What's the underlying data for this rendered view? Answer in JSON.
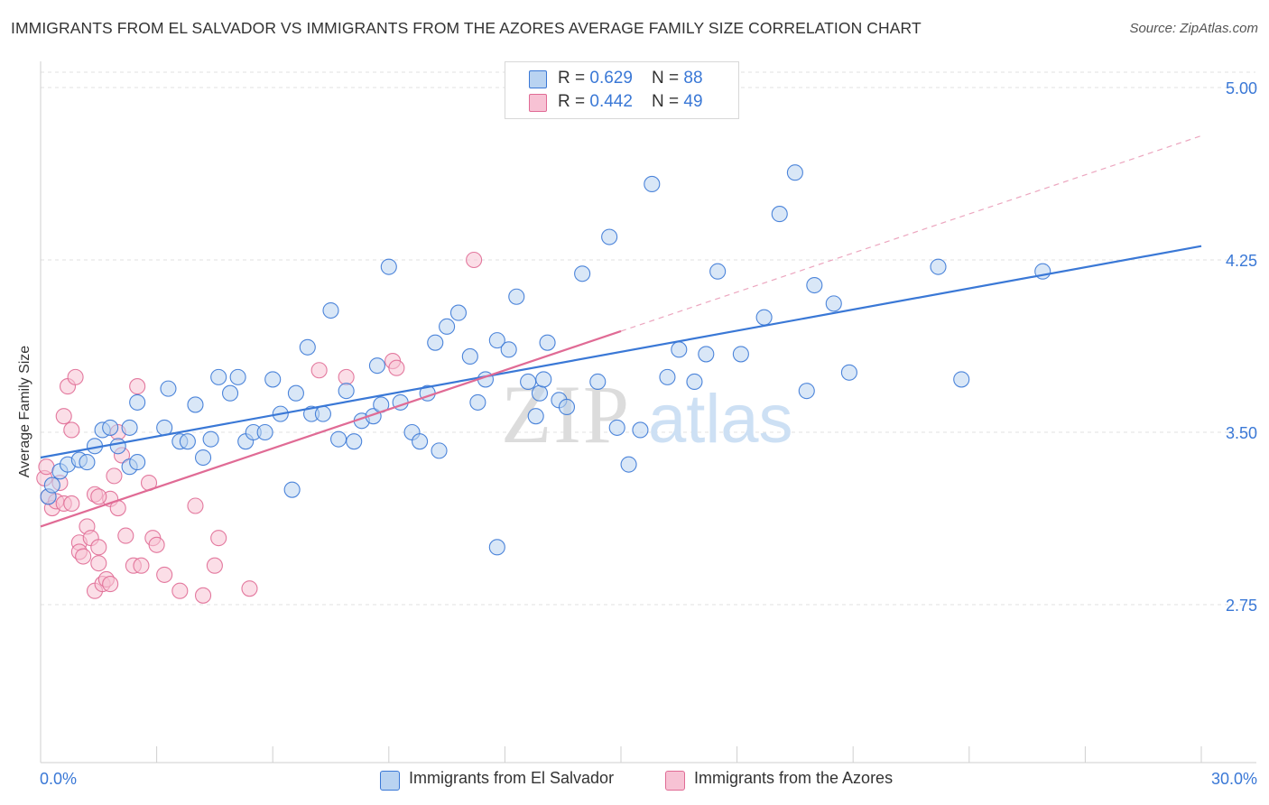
{
  "header": {
    "title": "IMMIGRANTS FROM EL SALVADOR VS IMMIGRANTS FROM THE AZORES AVERAGE FAMILY SIZE CORRELATION CHART",
    "source": "Source: ZipAtlas.com"
  },
  "watermark": {
    "zip": "ZIP",
    "atlas": "atlas"
  },
  "stats_legend": {
    "row1": {
      "r_label": "R = ",
      "r_value": "0.629",
      "n_label": "N = ",
      "n_value": "88"
    },
    "row2": {
      "r_label": "R = ",
      "r_value": "0.442",
      "n_label": "N = ",
      "n_value": "49"
    }
  },
  "colors": {
    "blue": "#3a78d6",
    "blue_fill": "#b9d3f1",
    "pink": "#e06b95",
    "pink_fill": "#f7c2d4",
    "axis_blue": "#3a78d6"
  },
  "chart_data": {
    "type": "scatter",
    "xlabel": "",
    "ylabel": "Average Family Size",
    "xlim": [
      0,
      30
    ],
    "ylim": [
      2.0,
      5.1
    ],
    "x_tick_labels": [
      "0.0%",
      "30.0%"
    ],
    "y_ticks": [
      2.75,
      3.5,
      4.25,
      5.0
    ],
    "y_tick_labels": [
      "2.75",
      "3.50",
      "4.25",
      "5.00"
    ],
    "grid": true,
    "legend_position": "bottom",
    "series": [
      {
        "name": "Immigrants from El Salvador",
        "color": "#3a78d6",
        "trend": {
          "x": [
            0,
            30
          ],
          "y": [
            3.39,
            4.31
          ]
        },
        "points": [
          [
            0.2,
            3.22
          ],
          [
            0.3,
            3.27
          ],
          [
            0.5,
            3.33
          ],
          [
            0.7,
            3.36
          ],
          [
            1.0,
            3.38
          ],
          [
            1.2,
            3.37
          ],
          [
            1.4,
            3.44
          ],
          [
            1.6,
            3.51
          ],
          [
            1.8,
            3.52
          ],
          [
            2.0,
            3.44
          ],
          [
            2.3,
            3.35
          ],
          [
            2.5,
            3.37
          ],
          [
            2.3,
            3.52
          ],
          [
            2.5,
            3.63
          ],
          [
            3.2,
            3.52
          ],
          [
            3.3,
            3.69
          ],
          [
            3.6,
            3.46
          ],
          [
            3.8,
            3.46
          ],
          [
            4.0,
            3.62
          ],
          [
            4.2,
            3.39
          ],
          [
            4.4,
            3.47
          ],
          [
            4.6,
            3.74
          ],
          [
            4.9,
            3.67
          ],
          [
            5.1,
            3.74
          ],
          [
            5.3,
            3.46
          ],
          [
            5.5,
            3.5
          ],
          [
            5.8,
            3.5
          ],
          [
            6.0,
            3.73
          ],
          [
            6.2,
            3.58
          ],
          [
            6.5,
            3.25
          ],
          [
            6.6,
            3.67
          ],
          [
            6.9,
            3.87
          ],
          [
            7.0,
            3.58
          ],
          [
            7.3,
            3.58
          ],
          [
            7.5,
            4.03
          ],
          [
            7.7,
            3.47
          ],
          [
            7.9,
            3.68
          ],
          [
            8.1,
            3.46
          ],
          [
            8.3,
            3.55
          ],
          [
            8.6,
            3.57
          ],
          [
            8.7,
            3.79
          ],
          [
            8.8,
            3.62
          ],
          [
            9.0,
            4.22
          ],
          [
            9.3,
            3.63
          ],
          [
            9.6,
            3.5
          ],
          [
            9.8,
            3.46
          ],
          [
            10.0,
            3.67
          ],
          [
            10.2,
            3.89
          ],
          [
            10.3,
            3.42
          ],
          [
            10.5,
            3.96
          ],
          [
            10.8,
            4.02
          ],
          [
            11.1,
            3.83
          ],
          [
            11.3,
            3.63
          ],
          [
            11.5,
            3.73
          ],
          [
            11.8,
            3.9
          ],
          [
            11.8,
            3.0
          ],
          [
            12.1,
            3.86
          ],
          [
            12.3,
            4.09
          ],
          [
            12.6,
            3.72
          ],
          [
            12.8,
            3.57
          ],
          [
            12.9,
            3.67
          ],
          [
            13.0,
            3.73
          ],
          [
            13.1,
            3.89
          ],
          [
            13.4,
            3.64
          ],
          [
            13.6,
            3.61
          ],
          [
            14.0,
            4.19
          ],
          [
            14.4,
            3.72
          ],
          [
            14.7,
            4.35
          ],
          [
            14.9,
            3.52
          ],
          [
            15.2,
            3.36
          ],
          [
            15.5,
            3.51
          ],
          [
            15.8,
            4.58
          ],
          [
            16.2,
            3.74
          ],
          [
            16.5,
            3.86
          ],
          [
            16.9,
            3.72
          ],
          [
            17.2,
            3.84
          ],
          [
            17.5,
            4.2
          ],
          [
            18.1,
            3.84
          ],
          [
            18.7,
            4.0
          ],
          [
            19.1,
            4.45
          ],
          [
            19.5,
            4.63
          ],
          [
            19.8,
            3.68
          ],
          [
            20.0,
            4.14
          ],
          [
            20.5,
            4.06
          ],
          [
            20.9,
            3.76
          ],
          [
            23.2,
            4.22
          ],
          [
            23.8,
            3.73
          ],
          [
            25.9,
            4.2
          ]
        ]
      },
      {
        "name": "Immigrants from the Azores",
        "color": "#e06b95",
        "trend": {
          "x": [
            0,
            15
          ],
          "y": [
            3.09,
            3.94
          ]
        },
        "trend_dashed": {
          "x": [
            15,
            30
          ],
          "y": [
            3.94,
            4.79
          ]
        },
        "points": [
          [
            0.1,
            3.3
          ],
          [
            0.15,
            3.35
          ],
          [
            0.2,
            3.22
          ],
          [
            0.3,
            3.17
          ],
          [
            0.4,
            3.2
          ],
          [
            0.5,
            3.28
          ],
          [
            0.6,
            3.57
          ],
          [
            0.6,
            3.19
          ],
          [
            0.7,
            3.7
          ],
          [
            0.8,
            3.51
          ],
          [
            0.8,
            3.19
          ],
          [
            0.9,
            3.74
          ],
          [
            1.0,
            3.02
          ],
          [
            1.0,
            2.98
          ],
          [
            1.1,
            2.96
          ],
          [
            1.2,
            3.09
          ],
          [
            1.3,
            3.04
          ],
          [
            1.4,
            3.23
          ],
          [
            1.4,
            2.81
          ],
          [
            1.5,
            2.93
          ],
          [
            1.5,
            3.0
          ],
          [
            1.6,
            2.84
          ],
          [
            1.7,
            2.86
          ],
          [
            1.8,
            2.84
          ],
          [
            1.8,
            3.21
          ],
          [
            1.9,
            3.31
          ],
          [
            2.0,
            3.17
          ],
          [
            2.0,
            3.5
          ],
          [
            2.1,
            3.4
          ],
          [
            2.2,
            3.05
          ],
          [
            2.4,
            2.92
          ],
          [
            2.5,
            3.7
          ],
          [
            2.6,
            2.92
          ],
          [
            2.8,
            3.28
          ],
          [
            2.9,
            3.04
          ],
          [
            3.0,
            3.01
          ],
          [
            3.2,
            2.88
          ],
          [
            3.6,
            2.81
          ],
          [
            4.0,
            3.18
          ],
          [
            4.2,
            2.79
          ],
          [
            4.5,
            2.92
          ],
          [
            4.6,
            3.04
          ],
          [
            5.4,
            2.82
          ],
          [
            7.2,
            3.77
          ],
          [
            7.9,
            3.74
          ],
          [
            9.1,
            3.81
          ],
          [
            9.2,
            3.78
          ],
          [
            11.2,
            4.25
          ],
          [
            1.5,
            3.22
          ]
        ]
      }
    ]
  },
  "bottom_legend": {
    "item1": "Immigrants from El Salvador",
    "item2": "Immigrants from the Azores"
  }
}
